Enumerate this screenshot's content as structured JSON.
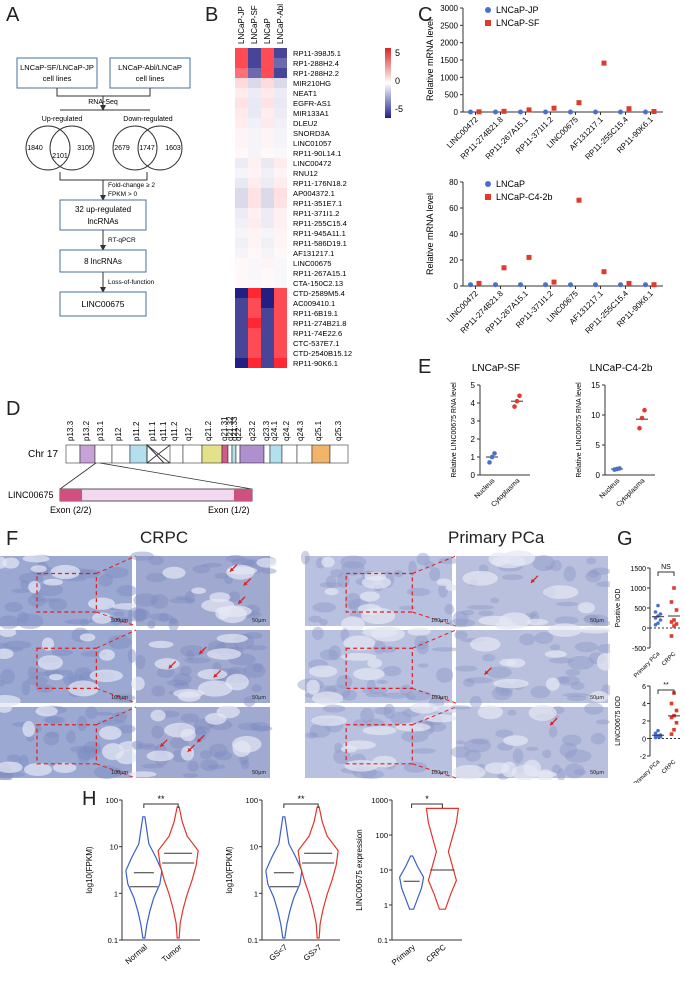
{
  "panels": {
    "A": "A",
    "B": "B",
    "C": "C",
    "D": "D",
    "E": "E",
    "F": "F",
    "G": "G",
    "H": "H"
  },
  "panelA": {
    "box_left": [
      "LNCaP-SF/LNCaP-JP",
      "cell lines"
    ],
    "box_right": [
      "LNCaP-Abl/LNCaP",
      "cell lines"
    ],
    "rnaseq": "RNA-Seq",
    "up_label": "Up-regulated",
    "down_label": "Down-regulated",
    "venn_up": [
      "1840",
      "2101",
      "3105"
    ],
    "venn_down": [
      "2679",
      "1747",
      "1603"
    ],
    "filter": [
      "Fold-change ≥ 2",
      "FPKM > 0"
    ],
    "box_32": [
      "32 up-regulated",
      "lncRNAs"
    ],
    "step_qpcr": "RT-qPCR",
    "box_8": "8 lncRNAs",
    "step_lof": "Loss-of-function",
    "box_final": "LINC00675"
  },
  "panelB": {
    "columns": [
      "LNCaP-JP",
      "LNCaP-SF",
      "LNCaP",
      "LNCaP-Abl"
    ],
    "genes": [
      "RP11-398J5.1",
      "RP1-288H2.4",
      "RP1-288H2.2",
      "MIR210HG",
      "NEAT1",
      "EGFR-AS1",
      "MIR133A1",
      "DLEU2",
      "SNORD3A",
      "LINC01057",
      "RP11-90L14.1",
      "LINC00472",
      "RNU12",
      "RP11-176N18.2",
      "AP004372.1",
      "RP11-351E7.1",
      "RP11-371I1.2",
      "RP11-255C15.4",
      "RP11-945A11.1",
      "RP11-586D19.1",
      "AF131217.1",
      "LINC00675",
      "RP11-267A15.1",
      "CTA-150C2.13",
      "CTD-2589M5.4",
      "AC009410.1",
      "RP11-6B19.1",
      "RP11-274B21.8",
      "RP11-74E22.6",
      "CTC-537E7.1",
      "CTD-2540B15.12",
      "RP11-90K6.1"
    ],
    "values": [
      [
        5,
        -5,
        5,
        -5
      ],
      [
        5,
        -5,
        5,
        -4
      ],
      [
        4,
        -4,
        5,
        -5
      ],
      [
        1,
        -1,
        1,
        -1
      ],
      [
        0.5,
        -0.5,
        0.6,
        -0.5
      ],
      [
        0.8,
        -0.6,
        0.8,
        -0.6
      ],
      [
        0.6,
        -0.6,
        0.5,
        -0.5
      ],
      [
        0.5,
        -0.4,
        0.6,
        -0.4
      ],
      [
        0.3,
        -0.3,
        0.3,
        -0.3
      ],
      [
        0.3,
        -0.3,
        0.3,
        -0.3
      ],
      [
        0.2,
        -0.3,
        0.2,
        -0.2
      ],
      [
        -0.5,
        0.4,
        -0.6,
        0.5
      ],
      [
        -0.3,
        0.3,
        -0.4,
        0.3
      ],
      [
        -0.6,
        0.5,
        -0.5,
        0.5
      ],
      [
        -1,
        0.8,
        -1,
        0.9
      ],
      [
        -1,
        0.8,
        -1,
        0.8
      ],
      [
        -0.5,
        0.4,
        -0.5,
        0.4
      ],
      [
        -0.4,
        0.5,
        -0.5,
        0.4
      ],
      [
        -0.3,
        0.3,
        -0.3,
        0.3
      ],
      [
        -0.4,
        0.3,
        -0.4,
        0.3
      ],
      [
        -0.3,
        0.2,
        -0.3,
        0.2
      ],
      [
        0.2,
        -0.2,
        0.3,
        -0.2
      ],
      [
        0.2,
        -0.2,
        0.2,
        -0.2
      ],
      [
        0.2,
        -0.2,
        0.2,
        -0.2
      ],
      [
        -6,
        6,
        -6,
        5
      ],
      [
        -5,
        5,
        -6,
        5
      ],
      [
        -5,
        5,
        -5,
        5
      ],
      [
        -5,
        6,
        -5,
        5
      ],
      [
        -5,
        5,
        -5,
        5
      ],
      [
        -5,
        5,
        -5,
        5
      ],
      [
        -5,
        5,
        -5,
        5
      ],
      [
        -6,
        6,
        -5,
        6
      ]
    ],
    "scale": {
      "ticks": [
        "5",
        "0",
        "-5"
      ],
      "colors": {
        "high": "#d62728",
        "mid": "#ffffff",
        "low": "#1f1f8f"
      }
    }
  },
  "panelC": {
    "ylabel": "Relative mRNA level",
    "categories": [
      "LINC00472",
      "RP11-274B21.8",
      "RP11-267A15.1",
      "RP11-371I1.2",
      "LINC00675",
      "AF131217.1",
      "RP11-255C15.4",
      "RP11-90K6.1"
    ],
    "top": {
      "legend": [
        "LNCaP-JP",
        "LNCaP-SF"
      ],
      "yticks": [
        "0",
        "500",
        "1000",
        "1500",
        "2000",
        "2500",
        "3000"
      ],
      "ymax": 3000,
      "series_a": [
        1,
        1,
        1,
        1,
        1,
        1,
        1,
        1
      ],
      "series_b": [
        5,
        20,
        60,
        110,
        270,
        1410,
        95,
        15
      ]
    },
    "bottom": {
      "legend": [
        "LNCaP",
        "LNCaP-C4-2b"
      ],
      "yticks": [
        "0",
        "20",
        "40",
        "60",
        "80"
      ],
      "ymax": 80,
      "series_a": [
        1,
        1,
        1,
        1,
        1,
        1,
        1,
        1
      ],
      "series_b": [
        2,
        14,
        22,
        3,
        66,
        11,
        2,
        1
      ]
    },
    "colors": {
      "a": "#4a6fd1",
      "b": "#e03a2f"
    }
  },
  "panelD": {
    "chr_label": "Chr 17",
    "bands": [
      "p13.3",
      "p13.2",
      "p13.1",
      "p12",
      "p11.2",
      "p11.1",
      "q11.1",
      "q11.2",
      "q12",
      "q21.2",
      "q21.31",
      "q21.32",
      "q21.33",
      "q22",
      "q23.2",
      "q23.3",
      "q24.1",
      "q24.2",
      "q24.3",
      "q25.1",
      "q25.3"
    ],
    "gene_label": "LINC00675",
    "exon_left": "Exon (2/2)",
    "exon_right": "Exon (1/2)"
  },
  "panelE": {
    "ylabel": "Relative LINC00675 RNA level",
    "charts": [
      {
        "title": "LNCaP-SF",
        "yticks": [
          "0",
          "1",
          "2",
          "3",
          "4",
          "5"
        ],
        "ymax": 5,
        "categories": [
          "Nucleus",
          "Cytoplasma"
        ],
        "values": [
          1.0,
          4.1
        ],
        "points": [
          [
            0.7,
            1.0,
            1.2
          ],
          [
            3.8,
            4.1,
            4.4
          ]
        ]
      },
      {
        "title": "LNCaP-C4-2b",
        "yticks": [
          "0",
          "5",
          "10",
          "15"
        ],
        "ymax": 15,
        "categories": [
          "Nucleus",
          "Cytoplasma"
        ],
        "values": [
          1.0,
          9.3
        ],
        "points": [
          [
            0.9,
            1.0,
            1.1
          ],
          [
            7.8,
            9.5,
            10.8
          ]
        ]
      }
    ]
  },
  "panelF": {
    "title_left": "CRPC",
    "title_right": "Primary PCa",
    "scale_labels": [
      "500μm",
      "50μm",
      "100μm",
      "50μm",
      "100μm",
      "50μm"
    ],
    "scale_labels_right": [
      "100μm",
      "50μm",
      "100μm",
      "50μm",
      "100μm",
      "50μm"
    ]
  },
  "panelG": {
    "top": {
      "ylabel": "Positive IOD",
      "yticks": [
        "1500",
        "1000",
        "500",
        "0",
        "-500"
      ],
      "categories": [
        "Primary PCa",
        "CRPC"
      ],
      "sig": "NS",
      "points_a": [
        80,
        120,
        200,
        250,
        300,
        350,
        400,
        560
      ],
      "points_b": [
        -200,
        50,
        100,
        150,
        200,
        450,
        650,
        1000
      ]
    },
    "bottom": {
      "ylabel": "LINC00675 IOD",
      "yticks": [
        "6",
        "4",
        "2",
        "0",
        "-2"
      ],
      "categories": [
        "Primary PCa",
        "CRPC"
      ],
      "sig": "**",
      "points_a": [
        0.1,
        0.2,
        0.2,
        0.3,
        0.3,
        0.4,
        0.6,
        0.9
      ],
      "points_b": [
        0.5,
        1.0,
        1.8,
        2.4,
        2.6,
        3.2,
        4.0,
        5.2
      ]
    },
    "colors": {
      "a": "#4a6fd1",
      "b": "#e03a2f"
    }
  },
  "panelH": {
    "charts": [
      {
        "ylabel": "log10(FPKM)",
        "yticks": [
          "100",
          "10",
          "1",
          "0.1"
        ],
        "categories": [
          "Normal",
          "Tumor"
        ],
        "sig": "**"
      },
      {
        "ylabel": "log10(FPKM)",
        "yticks": [
          "100",
          "10",
          "1",
          "0.1"
        ],
        "categories": [
          "GS<7",
          "GS>7"
        ],
        "sig": "**"
      },
      {
        "ylabel": "LINC00675 expression",
        "yticks": [
          "1000",
          "100",
          "10",
          "1",
          "0.1"
        ],
        "categories": [
          "Primary",
          "CRPC"
        ],
        "sig": "*"
      }
    ],
    "colors": {
      "a": "#3b5fc7",
      "b": "#e0352b"
    }
  }
}
